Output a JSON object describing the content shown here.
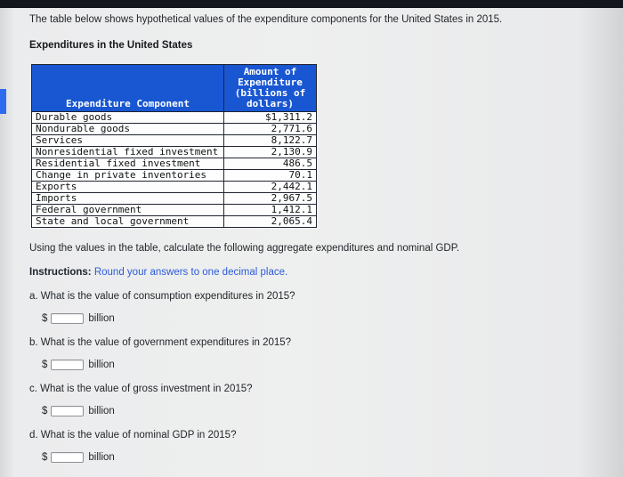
{
  "page": {
    "intro": "The table below shows hypothetical values of the expenditure components for the United States in 2015.",
    "table_title": "Expenditures in the United States",
    "prompt": "Using the values in the table, calculate the following aggregate expenditures and nominal GDP.",
    "instructions_label": "Instructions:",
    "instructions_text": " Round your answers to one decimal place."
  },
  "table": {
    "headers": {
      "component": "Expenditure Component",
      "amount": "Amount of\nExpenditure\n(billions of\ndollars)"
    },
    "rows": [
      {
        "component": "Durable goods",
        "amount": "$1,311.2"
      },
      {
        "component": "Nondurable goods",
        "amount": "2,771.6"
      },
      {
        "component": "Services",
        "amount": "8,122.7"
      },
      {
        "component": "Nonresidential fixed investment",
        "amount": "2,130.9"
      },
      {
        "component": "Residential fixed investment",
        "amount": "486.5"
      },
      {
        "component": "Change in private inventories",
        "amount": "70.1"
      },
      {
        "component": "Exports",
        "amount": "2,442.1"
      },
      {
        "component": "Imports",
        "amount": "2,967.5"
      },
      {
        "component": "Federal government",
        "amount": "1,412.1"
      },
      {
        "component": "State and local government",
        "amount": "2,065.4"
      }
    ]
  },
  "questions": [
    {
      "label": "a. What is the value of consumption expenditures in 2015?",
      "prefix": "$",
      "suffix": "billion",
      "value": ""
    },
    {
      "label": "b. What is the value of government expenditures in 2015?",
      "prefix": "$",
      "suffix": "billion",
      "value": ""
    },
    {
      "label": "c. What is the value of gross investment in 2015?",
      "prefix": "$",
      "suffix": "billion",
      "value": ""
    },
    {
      "label": "d. What is the value of nominal GDP in 2015?",
      "prefix": "$",
      "suffix": "billion",
      "value": ""
    }
  ],
  "colors": {
    "table_header_bg": "#1957d2",
    "table_header_text": "#ffffff",
    "accent_marker": "#2e6bf0"
  }
}
